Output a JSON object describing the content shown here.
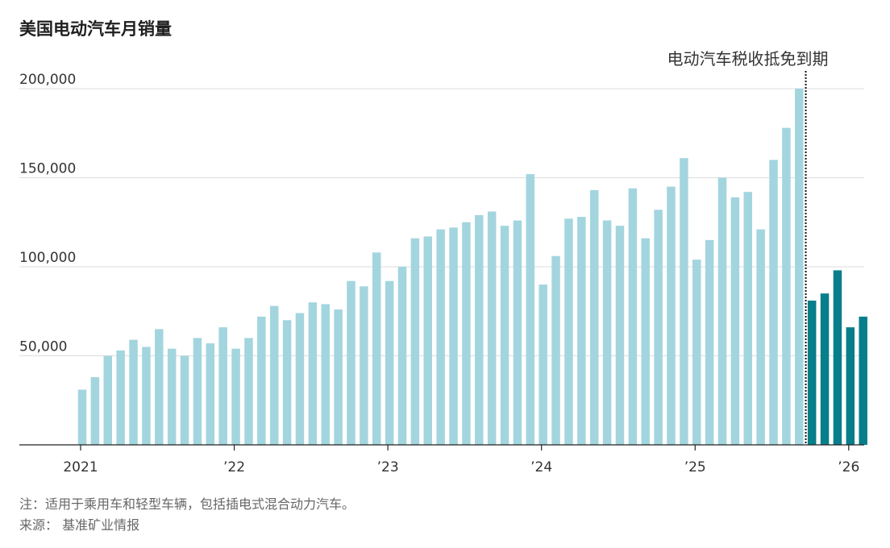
{
  "chart_data": {
    "type": "bar",
    "title": "美国电动汽车月销量",
    "xlabel": "",
    "ylabel": "",
    "ylim": [
      0,
      205000
    ],
    "y_ticks": [
      50000,
      100000,
      150000,
      200000
    ],
    "y_tick_labels": [
      "50,000",
      "100,000",
      "150,000",
      "200,000"
    ],
    "grid": true,
    "x_tick_labels": [
      {
        "label": "2021",
        "index": 0
      },
      {
        "label": "’22",
        "index": 12
      },
      {
        "label": "’23",
        "index": 24
      },
      {
        "label": "’24",
        "index": 36
      },
      {
        "label": "’25",
        "index": 48
      },
      {
        "label": "’26",
        "index": 60
      }
    ],
    "categories": [
      "2021-01",
      "2021-02",
      "2021-03",
      "2021-04",
      "2021-05",
      "2021-06",
      "2021-07",
      "2021-08",
      "2021-09",
      "2021-10",
      "2021-11",
      "2021-12",
      "2022-01",
      "2022-02",
      "2022-03",
      "2022-04",
      "2022-05",
      "2022-06",
      "2022-07",
      "2022-08",
      "2022-09",
      "2022-10",
      "2022-11",
      "2022-12",
      "2023-01",
      "2023-02",
      "2023-03",
      "2023-04",
      "2023-05",
      "2023-06",
      "2023-07",
      "2023-08",
      "2023-09",
      "2023-10",
      "2023-11",
      "2023-12",
      "2024-01",
      "2024-02",
      "2024-03",
      "2024-04",
      "2024-05",
      "2024-06",
      "2024-07",
      "2024-08",
      "2024-09",
      "2024-10",
      "2024-11",
      "2024-12",
      "2025-01",
      "2025-02",
      "2025-03",
      "2025-04",
      "2025-05",
      "2025-06",
      "2025-07",
      "2025-08",
      "2025-09",
      "2025-10",
      "2025-11",
      "2025-12",
      "2026-01",
      "2026-02"
    ],
    "values": [
      31000,
      38000,
      50000,
      53000,
      59000,
      55000,
      65000,
      54000,
      50000,
      60000,
      57000,
      66000,
      54000,
      60000,
      72000,
      78000,
      70000,
      74000,
      80000,
      79000,
      76000,
      92000,
      89000,
      108000,
      92000,
      100000,
      116000,
      117000,
      121000,
      122000,
      125000,
      129000,
      131000,
      123000,
      126000,
      152000,
      90000,
      106000,
      127000,
      128000,
      143000,
      126000,
      123000,
      144000,
      116000,
      132000,
      145000,
      161000,
      104000,
      115000,
      150000,
      139000,
      142000,
      121000,
      160000,
      178000,
      200000,
      81000,
      85000,
      98000,
      66000,
      72000
    ],
    "highlight_from_index": 57,
    "colors": {
      "before": "#a3d5df",
      "after": "#087e8b",
      "axis": "#222222",
      "grid": "#dddddd",
      "marker": "#111111"
    },
    "annotation": {
      "text": "电动汽车税收抵免到期",
      "after_index": 56
    }
  },
  "footnote": "注：适用于乘用车和轻型车辆，包括插电式混合动力汽车。",
  "source": "来源： 基准矿业情报"
}
